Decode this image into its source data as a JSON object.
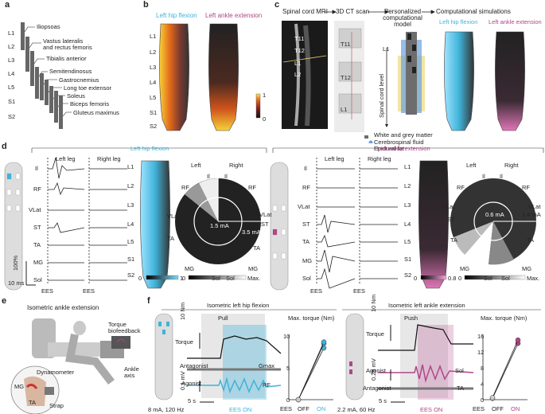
{
  "panels": {
    "a": "a",
    "b": "b",
    "c": "c",
    "d": "d",
    "e": "e",
    "f": "f"
  },
  "levels": [
    "L1",
    "L2",
    "L3",
    "L4",
    "L5",
    "S1",
    "S2"
  ],
  "panel_a": {
    "muscles": [
      "Iliopsoas",
      "Vastus lateralis\nand rectus femoris",
      "Tibialis anterior",
      "Semitendinosus",
      "Gastrocnemius",
      "Long toe extensor",
      "Soleus",
      "Biceps femoris",
      "Gluteus maximus"
    ]
  },
  "panel_b": {
    "title_left": "Left hip flexion",
    "title_right": "Left ankle extension",
    "scale_max": "1",
    "scale_min": "0"
  },
  "panel_c": {
    "steps": [
      "Spinal cord MRI",
      "3D CT scan",
      "Personalized\ncomputational\nmodel",
      "Computational simulations"
    ],
    "vertebrae": [
      "T11",
      "T12",
      "L1",
      "L2"
    ],
    "ct_vertebrae": [
      "T11",
      "T12",
      "L1"
    ],
    "model_l1": "L1",
    "axis_label": "Spinal cord level",
    "legend": [
      "White and grey matter",
      "Cerebrospinal fluid",
      "Epidural fat"
    ],
    "legend_colors": [
      "#6d6d6d",
      "#6aa0de",
      "#e7d36a"
    ],
    "sim_left": "Left hip flexion",
    "sim_right": "Left ankle extension"
  },
  "panel_d": {
    "title_left": "Left hip flexion",
    "title_right": "Left ankle extension",
    "left_leg": "Left leg",
    "right_leg": "Right leg",
    "muscles": [
      "Il",
      "RF",
      "VLat",
      "ST",
      "TA",
      "MG",
      "Sol"
    ],
    "eeg_label": "EES",
    "scale_y": "100%",
    "scale_x": "10 ms",
    "polar_left_label": "Left",
    "polar_right_label": "Right",
    "polar_muscles": [
      "Il",
      "RF",
      "VLat",
      "ST",
      "TA",
      "MG",
      "Sol"
    ],
    "hip_inner": "1.5 mA",
    "hip_outer": "3.5 mA",
    "ankle_inner": "0.6 mA",
    "ankle_outer": "1.4 mA",
    "hip_colorbar": [
      "0",
      "1"
    ],
    "ankle_colorbar": [
      "0",
      "0.8"
    ],
    "polar_colorbar": [
      "0",
      "Max."
    ]
  },
  "panel_e": {
    "title": "Isometric ankle extension",
    "labels": [
      "Torque\nbiofeedback",
      "Dynamometer",
      "Ankle\naxis",
      "MG",
      "TA",
      "Strap"
    ]
  },
  "panel_f": {
    "title_left": "Isometric left hip flexion",
    "title_right": "Isometric left ankle extension",
    "phase_left": "Pull",
    "phase_right": "Push",
    "torque": "Torque",
    "antagonist": "Antagonist",
    "agonist": "Agonist",
    "left_muscles": [
      "Gmax",
      "RF"
    ],
    "right_muscles": [
      "Sol",
      "TA"
    ],
    "torque_scale": "10 Nm",
    "emg_scale_left": "0.1 mV",
    "emg_scale_right": "0.25 mV",
    "time_scale": "5 s",
    "stim_left": "8 mA, 120 Hz",
    "stim_right": "2.2 mA, 60 Hz",
    "ees_on": "EES ON",
    "plot_title": "Max. torque (Nm)",
    "plot_x_label": "EES",
    "plot_x": [
      "OFF",
      "ON"
    ],
    "hip_ticks": [
      "0",
      "5",
      "10"
    ],
    "ankle_ticks": [
      "0",
      "4",
      "8",
      "12",
      "16"
    ],
    "colors": {
      "cyan": "#3fb3d9",
      "magenta": "#b2448a"
    }
  },
  "chart_data": [
    {
      "type": "scatter",
      "title": "Max. torque (Nm)",
      "xlabel": "EES",
      "categories": [
        "OFF",
        "ON"
      ],
      "ylim": [
        0,
        12
      ],
      "series": [
        {
          "values": [
            0,
            9.5
          ]
        },
        {
          "values": [
            0,
            10.3
          ]
        },
        {
          "values": [
            0,
            10.6
          ]
        }
      ]
    },
    {
      "type": "scatter",
      "title": "Max. torque (Nm)",
      "xlabel": "EES",
      "categories": [
        "OFF",
        "ON"
      ],
      "ylim": [
        0,
        16
      ],
      "series": [
        {
          "values": [
            0.3,
            13.8
          ]
        },
        {
          "values": [
            0.5,
            14.6
          ]
        }
      ]
    }
  ]
}
